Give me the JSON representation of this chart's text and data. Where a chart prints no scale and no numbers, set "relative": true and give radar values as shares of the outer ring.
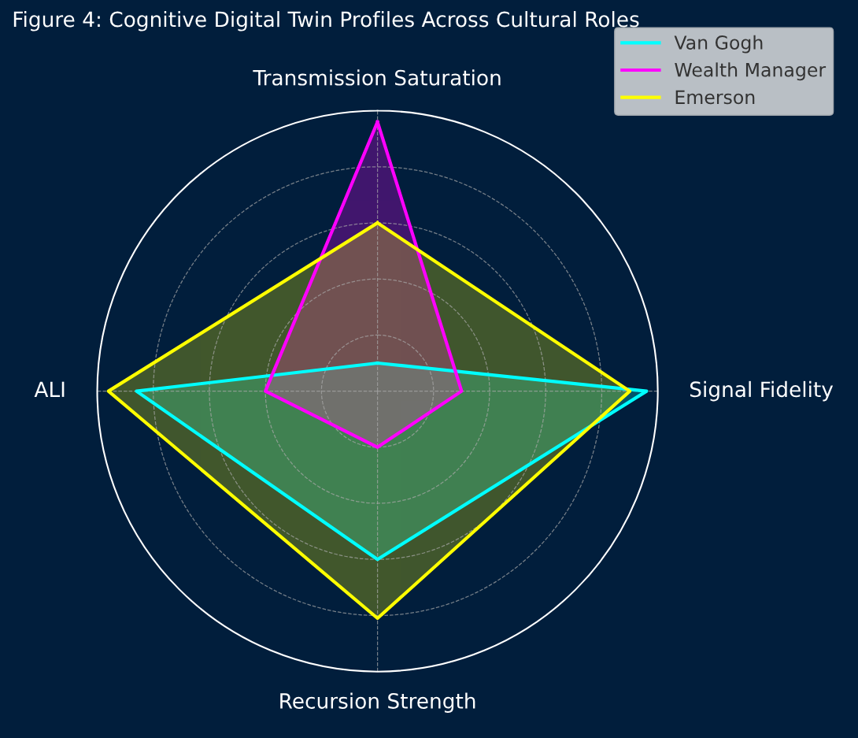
{
  "chart_data": {
    "type": "radar",
    "title": "Figure 4: Cognitive Digital Twin Profiles Across Cultural Roles",
    "categories": [
      "Transmission Saturation",
      "Signal Fidelity",
      "Recursion Strength",
      "ALI"
    ],
    "relative": true,
    "grid": true,
    "legend": "top right",
    "series": [
      {
        "name": "Van Gogh",
        "color": "#00ffff",
        "values": [
          0.1,
          0.96,
          0.6,
          0.86
        ]
      },
      {
        "name": "Wealth Manager",
        "color": "#ff00ff",
        "values": [
          0.96,
          0.3,
          0.2,
          0.4
        ]
      },
      {
        "name": "Emerson",
        "color": "#ffff00",
        "values": [
          0.6,
          0.9,
          0.81,
          0.96
        ]
      }
    ]
  }
}
